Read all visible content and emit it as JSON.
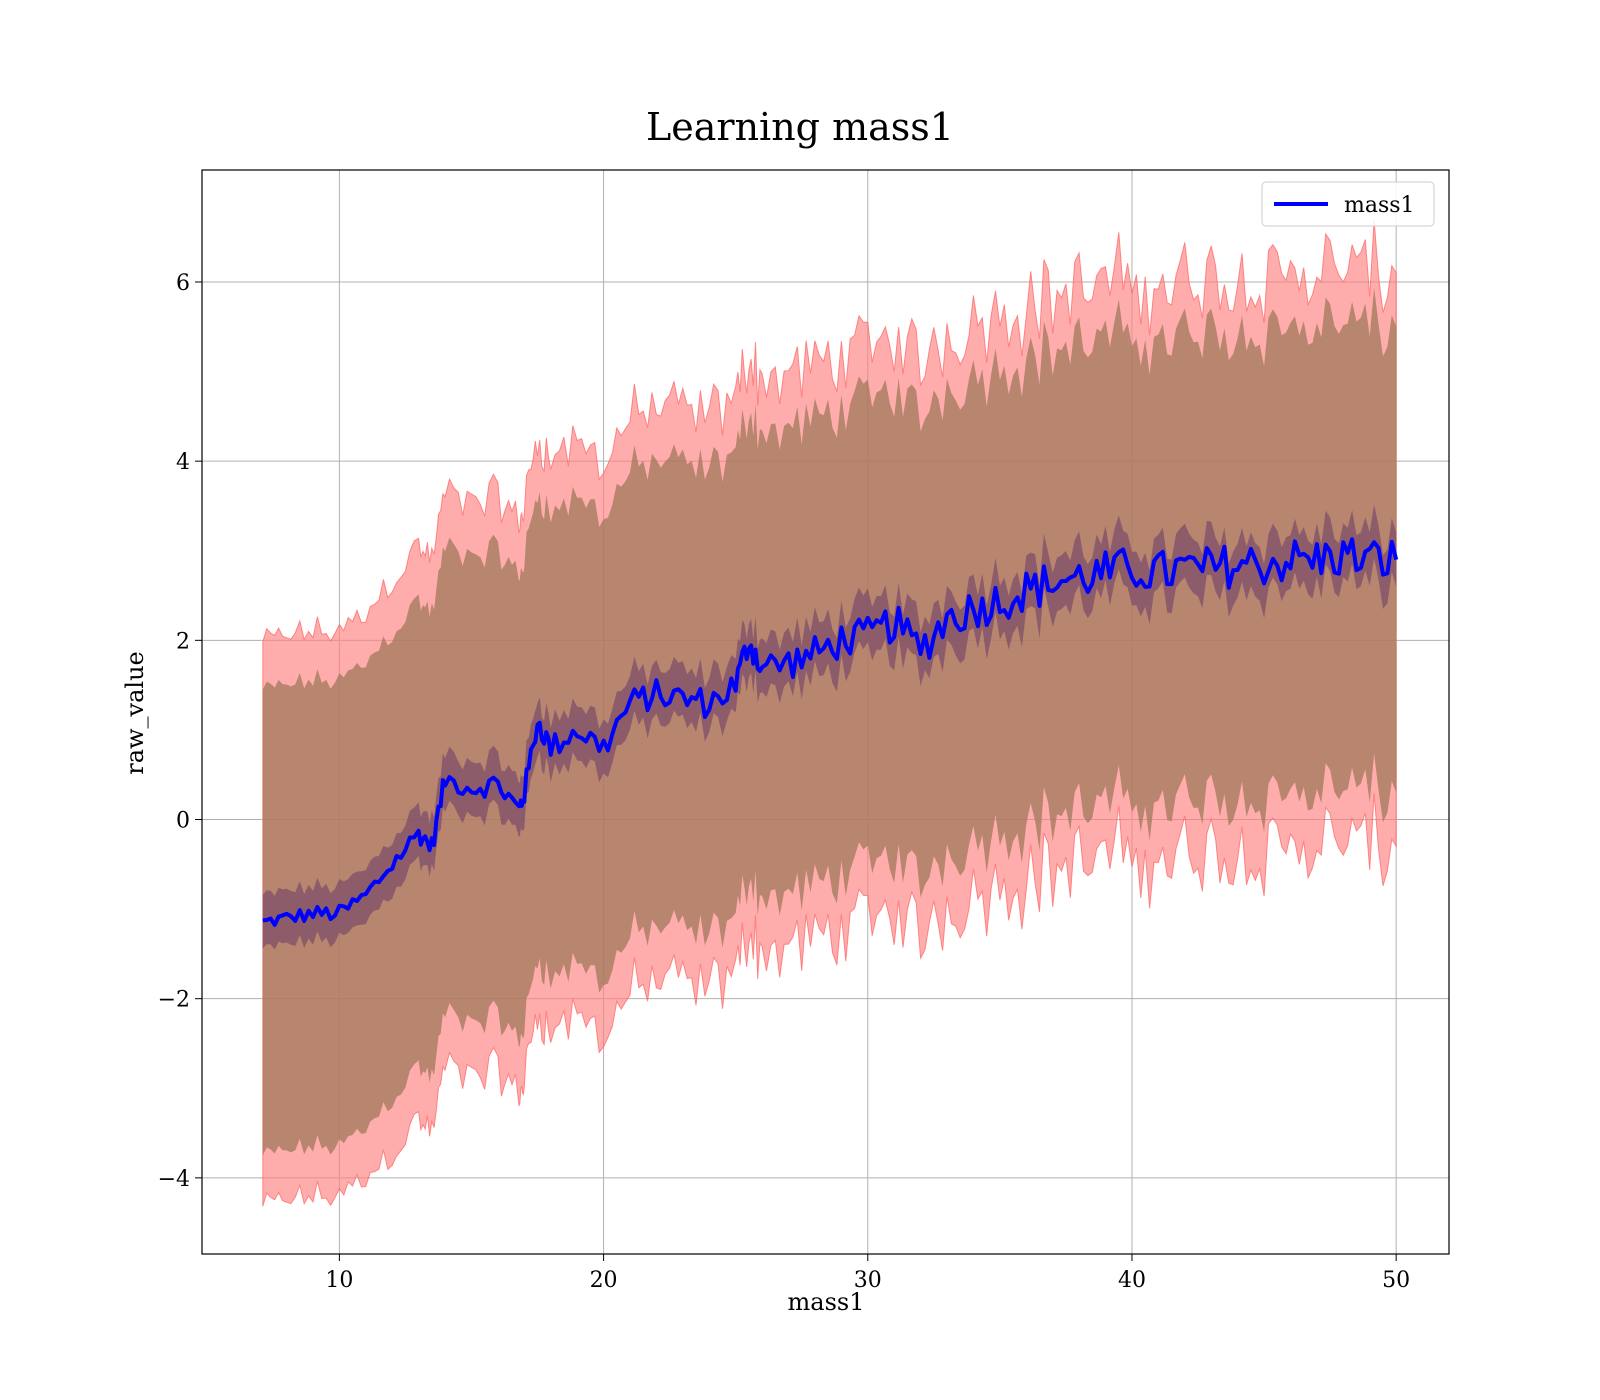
{
  "chart_data": {
    "type": "line",
    "title": "Learning mass1",
    "xlabel": "mass1",
    "ylabel": "raw_value",
    "xlim": [
      4.8,
      52.0
    ],
    "ylim": [
      -4.85,
      7.25
    ],
    "xticks": [
      10,
      20,
      30,
      40,
      50
    ],
    "yticks": [
      -4,
      -2,
      0,
      2,
      4,
      6
    ],
    "xtick_labels": [
      "10",
      "20",
      "30",
      "40",
      "50"
    ],
    "ytick_labels": [
      "−4",
      "−2",
      "0",
      "2",
      "4",
      "6"
    ],
    "grid": true,
    "legend": {
      "position": "top-right",
      "entries": [
        "mass1"
      ]
    },
    "colors": {
      "mean_line": "#0000ff",
      "outer_band": "#ff8080",
      "middle_band": "#a0785a",
      "inner_band": "#6a3a6a"
    },
    "series": [
      {
        "name": "mass1",
        "x": [
          7.1,
          8.0,
          9.0,
          10.0,
          11.0,
          12.0,
          13.0,
          13.5,
          14.0,
          15.0,
          16.0,
          16.8,
          17.0,
          17.5,
          18.0,
          19.0,
          20.0,
          21.0,
          22.0,
          23.0,
          24.0,
          25.0,
          25.5,
          26.0,
          27.0,
          28.0,
          29.0,
          30.0,
          31.0,
          32.0,
          33.0,
          34.0,
          35.0,
          36.0,
          37.0,
          38.0,
          39.0,
          40.0,
          41.0,
          42.0,
          43.0,
          44.0,
          45.0,
          46.0,
          47.0,
          48.0,
          49.0,
          50.0
        ],
        "y": [
          -1.15,
          -1.1,
          -1.05,
          -1.05,
          -0.85,
          -0.5,
          -0.15,
          -0.3,
          0.45,
          0.35,
          0.4,
          0.1,
          0.3,
          1.1,
          0.8,
          1.0,
          0.8,
          1.3,
          1.4,
          1.35,
          1.3,
          1.5,
          2.0,
          1.7,
          1.75,
          1.85,
          2.0,
          2.05,
          2.2,
          1.9,
          2.25,
          2.35,
          2.45,
          2.55,
          2.65,
          2.7,
          2.75,
          2.8,
          2.75,
          2.8,
          2.8,
          2.85,
          2.85,
          2.9,
          2.9,
          2.95,
          2.9,
          2.9
        ],
        "band_inner_halfwidth": [
          0.3,
          0.3,
          0.3,
          0.3,
          0.3,
          0.3,
          0.3,
          0.3,
          0.3,
          0.3,
          0.3,
          0.3,
          0.3,
          0.3,
          0.3,
          0.3,
          0.3,
          0.3,
          0.3,
          0.3,
          0.3,
          0.3,
          0.3,
          0.3,
          0.3,
          0.3,
          0.3,
          0.3,
          0.3,
          0.3,
          0.3,
          0.3,
          0.3,
          0.3,
          0.3,
          0.3,
          0.3,
          0.3,
          0.3,
          0.3,
          0.3,
          0.3,
          0.3,
          0.3,
          0.3,
          0.3,
          0.3,
          0.3
        ],
        "band_middle_halfwidth": [
          2.6,
          2.6,
          2.6,
          2.6,
          2.6,
          2.6,
          2.6,
          2.6,
          2.6,
          2.6,
          2.6,
          2.6,
          2.6,
          2.6,
          2.6,
          2.6,
          2.6,
          2.6,
          2.6,
          2.6,
          2.6,
          2.6,
          2.6,
          2.6,
          2.6,
          2.6,
          2.6,
          2.6,
          2.6,
          2.6,
          2.6,
          2.6,
          2.6,
          2.6,
          2.6,
          2.6,
          2.6,
          2.6,
          2.6,
          2.6,
          2.6,
          2.6,
          2.6,
          2.6,
          2.6,
          2.6,
          2.6,
          2.6
        ],
        "band_outer_halfwidth": [
          3.15,
          3.15,
          3.15,
          3.15,
          3.15,
          3.2,
          3.2,
          3.2,
          3.2,
          3.2,
          3.2,
          3.2,
          3.2,
          3.2,
          3.2,
          3.2,
          3.2,
          3.2,
          3.2,
          3.2,
          3.2,
          3.2,
          3.2,
          3.2,
          3.2,
          3.2,
          3.2,
          3.2,
          3.2,
          3.2,
          3.2,
          3.2,
          3.2,
          3.2,
          3.2,
          3.2,
          3.2,
          3.2,
          3.2,
          3.2,
          3.2,
          3.2,
          3.2,
          3.2,
          3.2,
          3.2,
          3.2,
          3.2
        ]
      }
    ]
  }
}
